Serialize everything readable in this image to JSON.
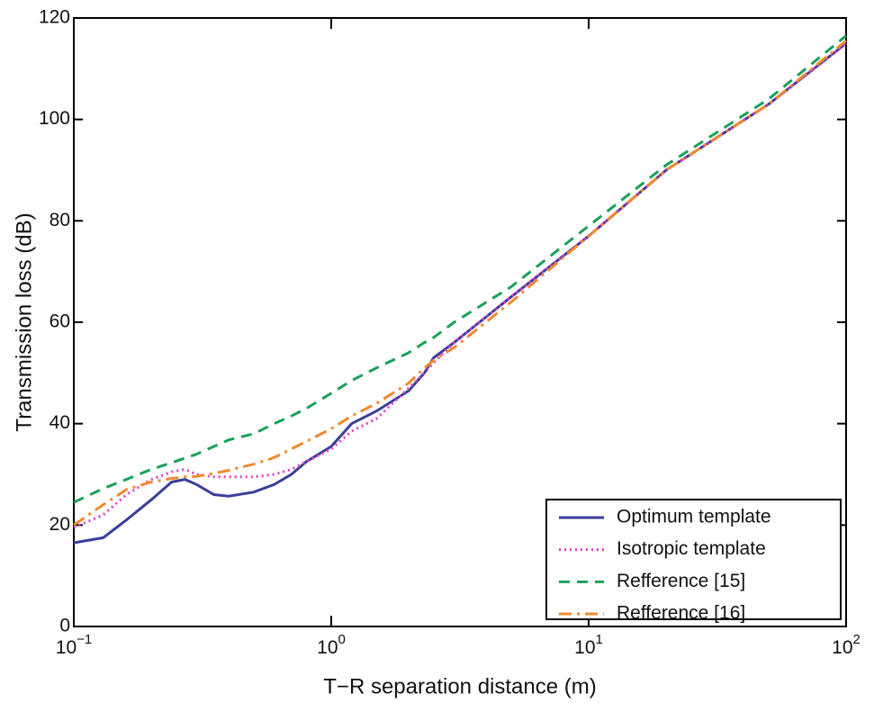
{
  "chart_data": {
    "type": "line",
    "x_label": "T−R separation distance (m)",
    "y_label": "Transmission loss (dB)",
    "x": [
      0.1,
      0.13,
      0.16,
      0.2,
      0.24,
      0.27,
      0.3,
      0.35,
      0.4,
      0.5,
      0.6,
      0.7,
      0.8,
      1,
      1.2,
      1.5,
      2,
      2.3,
      2.5,
      3,
      5,
      10,
      20,
      50,
      100
    ],
    "xscale": "log",
    "xlim": [
      0.1,
      100
    ],
    "xticks": [
      {
        "value": 0.1,
        "label": "10−1"
      },
      {
        "value": 1,
        "label": "100"
      },
      {
        "value": 10,
        "label": "101"
      },
      {
        "value": 100,
        "label": "102"
      }
    ],
    "ylim": [
      0,
      120
    ],
    "yticks": [
      0,
      20,
      40,
      60,
      80,
      100,
      120
    ],
    "grid": false,
    "legend": "lower right",
    "series": [
      {
        "name": "Optimum template",
        "color": "#3a3f9a",
        "dash": "solid",
        "values": [
          16.5,
          17.5,
          21,
          25,
          28.5,
          29,
          28,
          26,
          25.7,
          26.5,
          28,
          30,
          32.5,
          35.5,
          40,
          42.5,
          46.5,
          50,
          53,
          56,
          65,
          77,
          90,
          103,
          115
        ]
      },
      {
        "name": "Isotropic template",
        "color": "#e040c0",
        "dash": "dotted",
        "values": [
          19.5,
          22,
          26,
          29,
          30.5,
          31,
          30,
          29.5,
          29.5,
          29.5,
          30,
          31,
          32.5,
          35,
          38.5,
          41,
          47,
          50,
          52,
          56,
          65,
          77,
          90,
          103,
          115
        ]
      },
      {
        "name": "Refference [15]",
        "color": "#1aa05a",
        "dash": "dashed",
        "values": [
          24.5,
          27.2,
          29,
          31,
          32.3,
          33.2,
          34,
          35.5,
          36.8,
          38,
          40,
          41.5,
          43,
          46,
          48.5,
          51,
          54,
          56,
          57,
          60,
          67,
          79,
          91,
          104,
          116.5
        ]
      },
      {
        "name": "Refference [16]",
        "color": "#f08a30",
        "dash": "dashdot",
        "values": [
          20,
          24,
          27,
          28.5,
          29.2,
          29.5,
          29.6,
          30.2,
          30.8,
          32,
          33.3,
          35,
          36.5,
          39,
          41.5,
          44,
          48,
          51,
          52.5,
          55,
          64,
          77,
          90,
          103,
          115.5
        ]
      }
    ]
  }
}
